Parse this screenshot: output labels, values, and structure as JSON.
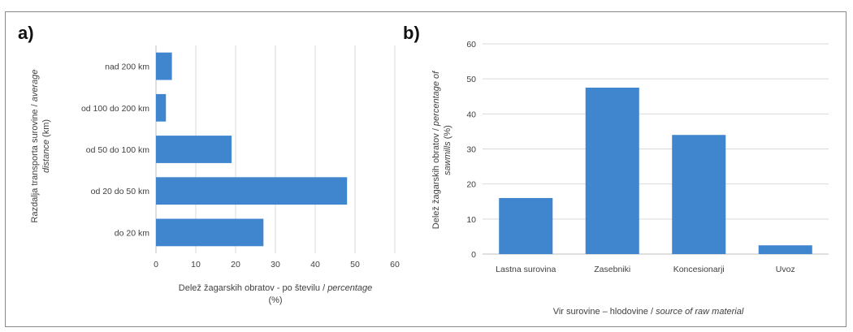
{
  "chart_data": [
    {
      "panel_label": "a)",
      "type": "bar",
      "orientation": "horizontal",
      "categories": [
        "nad 200 km",
        "od 100 do 200 km",
        "od 50 do 100 km",
        "od 20  do 50 km",
        "do 20 km"
      ],
      "values": [
        4,
        2.5,
        19,
        48,
        27
      ],
      "xlim": [
        0,
        60
      ],
      "xticks": [
        0,
        10,
        20,
        30,
        40,
        50,
        60
      ],
      "xlabel": {
        "line1_regular": "Delež žagarskih obratov - po številu / ",
        "line1_italic": "percentage",
        "line2": "(%)"
      },
      "ylabel": {
        "line1_regular": "Razdalja transporta surovine / ",
        "line1_italic": "average",
        "line2_italic": "distance",
        "line2_regular": " (km)"
      },
      "grid": "vertical",
      "bar_color": "#3f86cf"
    },
    {
      "panel_label": "b)",
      "type": "bar",
      "orientation": "vertical",
      "categories": [
        "Lastna surovina",
        "Zasebniki",
        "Koncesionarji",
        "Uvoz"
      ],
      "values": [
        16,
        47.5,
        34,
        2.5
      ],
      "ylim": [
        0,
        60
      ],
      "yticks": [
        0,
        10,
        20,
        30,
        40,
        50,
        60
      ],
      "xlabel": {
        "line1_regular": "Vir surovine – hlodovine / ",
        "line1_italic": "source of raw material"
      },
      "ylabel": {
        "line1_regular": "Delež žagarskih obratov / ",
        "line1_italic": "percentage of",
        "line2_italic": "sawmills",
        "line2_regular": " (%)"
      },
      "grid": "horizontal",
      "bar_color": "#3f86cf"
    }
  ]
}
